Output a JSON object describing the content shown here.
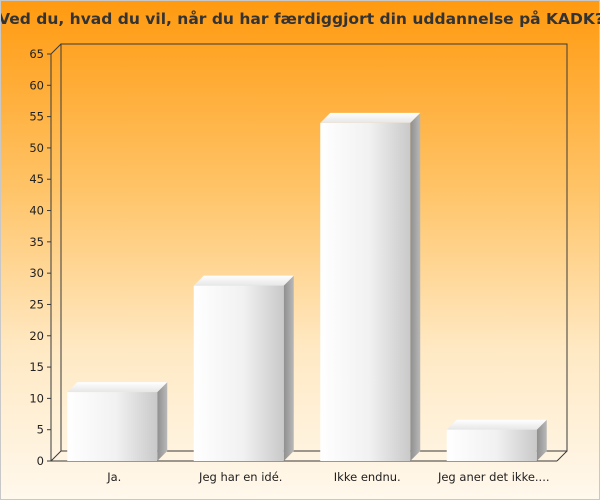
{
  "chart_data": {
    "type": "bar",
    "title": "Ved du, hvad du vil, når du har færdiggjort din uddannelse på KADK?",
    "categories": [
      "Ja.",
      "Jeg har en idé.",
      "Ikke endnu.",
      "Jeg aner det ikke...."
    ],
    "values": [
      11,
      28,
      54,
      5
    ],
    "xlabel": "",
    "ylabel": "",
    "ylim": [
      0,
      65
    ],
    "yticks": [
      "0",
      "5",
      "10",
      "15",
      "20",
      "25",
      "30",
      "35",
      "40",
      "45",
      "50",
      "55",
      "60",
      "65"
    ],
    "grid": false,
    "legend": "none"
  }
}
